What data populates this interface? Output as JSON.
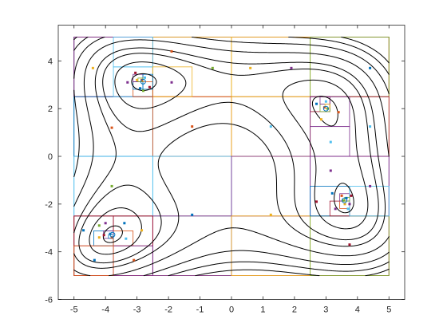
{
  "chart_data": {
    "type": "line",
    "title": "",
    "xlabel": "",
    "ylabel": "",
    "xlim": [
      -5.5,
      5.5
    ],
    "ylim": [
      -6,
      5.5
    ],
    "grid": false,
    "x_ticks": [
      -5,
      -4,
      -3,
      -2,
      -1,
      0,
      1,
      2,
      3,
      4,
      5
    ],
    "y_ticks": [
      -6,
      -4,
      -2,
      0,
      2,
      4
    ],
    "x_tick_labels": [
      "-5",
      "-4",
      "-3",
      "-2",
      "-1",
      "0",
      "1",
      "2",
      "3",
      "4",
      "5"
    ],
    "y_tick_labels": [
      "-6",
      "-4",
      "-2",
      "0",
      "2",
      "4"
    ],
    "contour": {
      "function": "himmelblau",
      "levels": [
        5,
        35,
        80,
        120,
        200,
        300,
        400,
        500
      ],
      "color": "#000000",
      "domain": [
        -5,
        5
      ]
    },
    "partition_colors": [
      "#0072BD",
      "#D95319",
      "#EDB120",
      "#7E2F8E",
      "#77AC30",
      "#4DBEEE",
      "#A2142F"
    ],
    "partition_rects": [
      {
        "x": [
          -5,
          0
        ],
        "y": [
          0,
          5
        ],
        "color": "#0072BD"
      },
      {
        "x": [
          0,
          5
        ],
        "y": [
          0,
          5
        ],
        "color": "#EDB120"
      },
      {
        "x": [
          -5,
          0
        ],
        "y": [
          -5,
          0
        ],
        "color": "#4DBEEE"
      },
      {
        "x": [
          0,
          5
        ],
        "y": [
          -5,
          0
        ],
        "color": "#7E2F8E"
      },
      {
        "x": [
          -5,
          5
        ],
        "y": [
          2.5,
          5
        ],
        "color": "#A2142F"
      },
      {
        "x": [
          -5,
          5
        ],
        "y": [
          -5,
          -2.5
        ],
        "color": "#D95319"
      },
      {
        "x": [
          -5,
          -2.5
        ],
        "y": [
          2.5,
          5
        ],
        "color": "#7E2F8E"
      },
      {
        "x": [
          -2.5,
          0
        ],
        "y": [
          2.5,
          5
        ],
        "color": "#EDB120"
      },
      {
        "x": [
          0,
          2.5
        ],
        "y": [
          2.5,
          5
        ],
        "color": "#EDB120"
      },
      {
        "x": [
          2.5,
          5
        ],
        "y": [
          2.5,
          5
        ],
        "color": "#77AC30"
      },
      {
        "x": [
          -5,
          -2.5
        ],
        "y": [
          0,
          2.5
        ],
        "color": "#0072BD"
      },
      {
        "x": [
          -2.5,
          0
        ],
        "y": [
          0,
          2.5
        ],
        "color": "#D95319"
      },
      {
        "x": [
          0,
          2.5
        ],
        "y": [
          0,
          2.5
        ],
        "color": "#EDB120"
      },
      {
        "x": [
          2.5,
          5
        ],
        "y": [
          0,
          2.5
        ],
        "color": "#A2142F"
      },
      {
        "x": [
          -5,
          -2.5
        ],
        "y": [
          -2.5,
          0
        ],
        "color": "#4DBEEE"
      },
      {
        "x": [
          -2.5,
          0
        ],
        "y": [
          -2.5,
          0
        ],
        "color": "#4DBEEE"
      },
      {
        "x": [
          0,
          2.5
        ],
        "y": [
          -2.5,
          0
        ],
        "color": "#7E2F8E"
      },
      {
        "x": [
          2.5,
          5
        ],
        "y": [
          -2.5,
          0
        ],
        "color": "#7E2F8E"
      },
      {
        "x": [
          -5,
          -2.5
        ],
        "y": [
          -5,
          -2.5
        ],
        "color": "#A2142F"
      },
      {
        "x": [
          -2.5,
          0
        ],
        "y": [
          -5,
          -2.5
        ],
        "color": "#7E2F8E"
      },
      {
        "x": [
          0,
          2.5
        ],
        "y": [
          -5,
          -2.5
        ],
        "color": "#EDB120"
      },
      {
        "x": [
          2.5,
          5
        ],
        "y": [
          -5,
          -2.5
        ],
        "color": "#77AC30"
      },
      {
        "x": [
          -3.75,
          -2.5
        ],
        "y": [
          3.75,
          5
        ],
        "color": "#4DBEEE"
      },
      {
        "x": [
          -3.75,
          -2.5
        ],
        "y": [
          2.5,
          3.75
        ],
        "color": "#4DBEEE"
      },
      {
        "x": [
          -2.5,
          -1.25
        ],
        "y": [
          2.5,
          3.75
        ],
        "color": "#EDB120"
      },
      {
        "x": [
          -3.125,
          -2.5
        ],
        "y": [
          2.5,
          3.125
        ],
        "color": "#D95319"
      },
      {
        "x": [
          -3.125,
          -2.8125
        ],
        "y": [
          2.8125,
          3.125
        ],
        "color": "#0072BD"
      },
      {
        "x": [
          -3.125,
          -2.8125
        ],
        "y": [
          3.125,
          3.4375
        ],
        "color": "#7E2F8E"
      },
      {
        "x": [
          -2.8125,
          -2.5
        ],
        "y": [
          2.8125,
          3.4375
        ],
        "color": "#0072BD"
      },
      {
        "x": [
          -2.96875,
          -2.8125
        ],
        "y": [
          3.125,
          3.28125
        ],
        "color": "#77AC30"
      },
      {
        "x": [
          2.5,
          3.125
        ],
        "y": [
          1.875,
          2.5
        ],
        "color": "#A2142F"
      },
      {
        "x": [
          2.8125,
          3.125
        ],
        "y": [
          1.875,
          2.1875
        ],
        "color": "#77AC30"
      },
      {
        "x": [
          2.8125,
          3.125
        ],
        "y": [
          2.1875,
          2.5
        ],
        "color": "#7E2F8E"
      },
      {
        "x": [
          2.96875,
          3.125
        ],
        "y": [
          2.03125,
          2.1875
        ],
        "color": "#EDB120"
      },
      {
        "x": [
          2.5,
          3.75
        ],
        "y": [
          1.25,
          2.5
        ],
        "color": "#7E2F8E"
      },
      {
        "x": [
          2.5,
          3.75
        ],
        "y": [
          0,
          1.25
        ],
        "color": "#7E2F8E"
      },
      {
        "x": [
          2.5,
          3.75
        ],
        "y": [
          -2.5,
          -1.25
        ],
        "color": "#0072BD"
      },
      {
        "x": [
          3.125,
          3.75
        ],
        "y": [
          -2.5,
          -1.875
        ],
        "color": "#A2142F"
      },
      {
        "x": [
          3.4375,
          3.75
        ],
        "y": [
          -2.1875,
          -1.875
        ],
        "color": "#D95319"
      },
      {
        "x": [
          3.4375,
          3.75
        ],
        "y": [
          -1.875,
          -1.5625
        ],
        "color": "#7E2F8E"
      },
      {
        "x": [
          3.75,
          5
        ],
        "y": [
          -2.5,
          -1.25
        ],
        "color": "#4DBEEE"
      },
      {
        "x": [
          3.59375,
          3.75
        ],
        "y": [
          -1.875,
          -1.71875
        ],
        "color": "#77AC30"
      },
      {
        "x": [
          -5,
          -3.75
        ],
        "y": [
          -3.75,
          -2.5
        ],
        "color": "#A2142F"
      },
      {
        "x": [
          -3.75,
          -2.5
        ],
        "y": [
          -3.75,
          -2.5
        ],
        "color": "#A2142F"
      },
      {
        "x": [
          -4.375,
          -3.75
        ],
        "y": [
          -3.75,
          -3.125
        ],
        "color": "#0072BD"
      },
      {
        "x": [
          -3.75,
          -3.125
        ],
        "y": [
          -3.75,
          -3.125
        ],
        "color": "#D95319"
      },
      {
        "x": [
          -4.0625,
          -3.75
        ],
        "y": [
          -3.4375,
          -3.125
        ],
        "color": "#7E2F8E"
      },
      {
        "x": [
          -3.90625,
          -3.75
        ],
        "y": [
          -3.4375,
          -3.28125
        ],
        "color": "#0072BD"
      },
      {
        "x": [
          -3.75,
          -2.5
        ],
        "y": [
          -5,
          -3.75
        ],
        "color": "#7E2F8E"
      },
      {
        "x": [
          -5,
          -3.75
        ],
        "y": [
          -5,
          -3.75
        ],
        "color": "#D95319"
      }
    ],
    "sample_points": [
      {
        "x": -4.4,
        "y": 3.7,
        "color": "#EDB120"
      },
      {
        "x": -3.3,
        "y": 3.1,
        "color": "#7E2F8E"
      },
      {
        "x": -2.6,
        "y": 2.9,
        "color": "#A2142F"
      },
      {
        "x": -2.9,
        "y": 2.85,
        "color": "#0072BD"
      },
      {
        "x": -2.85,
        "y": 3.2,
        "color": "#D95319"
      },
      {
        "x": -3.0,
        "y": 3.2,
        "color": "#EDB120"
      },
      {
        "x": -2.75,
        "y": 3.3,
        "color": "#4DBEEE"
      },
      {
        "x": -2.8,
        "y": 2.75,
        "color": "#77AC30"
      },
      {
        "x": -3.05,
        "y": 3.5,
        "color": "#A2142F"
      },
      {
        "x": -1.9,
        "y": 3.1,
        "color": "#7E2F8E"
      },
      {
        "x": -1.9,
        "y": 4.4,
        "color": "#D95319"
      },
      {
        "x": -0.6,
        "y": 3.7,
        "color": "#77AC30"
      },
      {
        "x": 0.6,
        "y": 3.7,
        "color": "#EDB120"
      },
      {
        "x": 1.9,
        "y": 3.7,
        "color": "#7E2F8E"
      },
      {
        "x": 4.4,
        "y": 3.7,
        "color": "#0072BD"
      },
      {
        "x": -3.8,
        "y": 1.2,
        "color": "#D95319"
      },
      {
        "x": -1.25,
        "y": 1.25,
        "color": "#D95319"
      },
      {
        "x": 1.25,
        "y": 1.25,
        "color": "#4DBEEE"
      },
      {
        "x": 4.4,
        "y": 1.25,
        "color": "#4DBEEE"
      },
      {
        "x": 2.7,
        "y": 2.2,
        "color": "#0072BD"
      },
      {
        "x": 3.0,
        "y": 2.3,
        "color": "#4DBEEE"
      },
      {
        "x": 2.95,
        "y": 2.05,
        "color": "#D95319"
      },
      {
        "x": 3.05,
        "y": 2.0,
        "color": "#77AC30"
      },
      {
        "x": 2.85,
        "y": 1.55,
        "color": "#EDB120"
      },
      {
        "x": 3.4,
        "y": 1.85,
        "color": "#D95319"
      },
      {
        "x": 3.15,
        "y": 0.6,
        "color": "#4DBEEE"
      },
      {
        "x": 3.15,
        "y": -0.6,
        "color": "#7E2F8E"
      },
      {
        "x": 4.4,
        "y": -1.25,
        "color": "#7E2F8E"
      },
      {
        "x": 2.7,
        "y": -1.9,
        "color": "#A2142F"
      },
      {
        "x": 3.2,
        "y": -1.55,
        "color": "#0072BD"
      },
      {
        "x": 3.3,
        "y": -2.2,
        "color": "#7E2F8E"
      },
      {
        "x": 3.55,
        "y": -1.85,
        "color": "#77AC30"
      },
      {
        "x": 3.6,
        "y": -2.0,
        "color": "#EDB120"
      },
      {
        "x": 3.65,
        "y": -1.75,
        "color": "#0072BD"
      },
      {
        "x": 3.5,
        "y": -1.65,
        "color": "#D95319"
      },
      {
        "x": 3.7,
        "y": -2.2,
        "color": "#4DBEEE"
      },
      {
        "x": 3.8,
        "y": -1.65,
        "color": "#A2142F"
      },
      {
        "x": 3.75,
        "y": -2.0,
        "color": "#7E2F8E"
      },
      {
        "x": -3.8,
        "y": -1.25,
        "color": "#77AC30"
      },
      {
        "x": -1.25,
        "y": -2.45,
        "color": "#0072BD"
      },
      {
        "x": 1.25,
        "y": -2.45,
        "color": "#EDB120"
      },
      {
        "x": -4.7,
        "y": -3.1,
        "color": "#0072BD"
      },
      {
        "x": -4.2,
        "y": -2.9,
        "color": "#77AC30"
      },
      {
        "x": -4.0,
        "y": -2.8,
        "color": "#7E2F8E"
      },
      {
        "x": -3.4,
        "y": -2.8,
        "color": "#0072BD"
      },
      {
        "x": -4.2,
        "y": -3.4,
        "color": "#EDB120"
      },
      {
        "x": -4.05,
        "y": -3.3,
        "color": "#A2142F"
      },
      {
        "x": -3.85,
        "y": -3.25,
        "color": "#0072BD"
      },
      {
        "x": -3.8,
        "y": -3.4,
        "color": "#D95319"
      },
      {
        "x": -3.35,
        "y": -3.45,
        "color": "#4DBEEE"
      },
      {
        "x": -2.85,
        "y": -3.1,
        "color": "#EDB120"
      },
      {
        "x": -4.35,
        "y": -4.35,
        "color": "#0072BD"
      },
      {
        "x": -3.1,
        "y": -4.35,
        "color": "#D95319"
      },
      {
        "x": 3.75,
        "y": -3.7,
        "color": "#A2142F"
      }
    ],
    "marked_points": [
      {
        "x": -2.805,
        "y": 3.131
      },
      {
        "x": 3.0,
        "y": 2.0
      },
      {
        "x": 3.584,
        "y": -1.848
      },
      {
        "x": -3.779,
        "y": -3.283
      }
    ]
  }
}
